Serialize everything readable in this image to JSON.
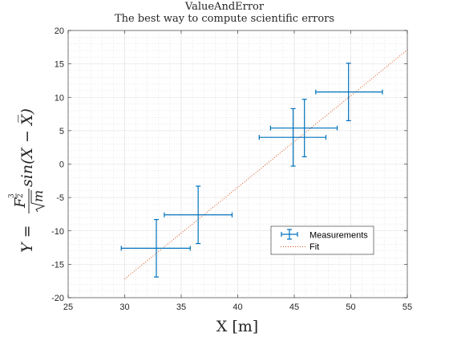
{
  "chart_data": {
    "type": "scatter",
    "title": "ValueAndError",
    "subtitle": "The best way to compute scientific errors",
    "xlabel": "X [m]",
    "ylabel_parts": {
      "lhs": "Y = ",
      "numerator_base": "F",
      "numerator_exponent_num": "3",
      "numerator_exponent_den": "2",
      "denominator_radicand": "m",
      "rhs": "sin(X − X̅)"
    },
    "xlim": [
      25,
      55
    ],
    "ylim": [
      -20,
      20
    ],
    "xticks": [
      "25",
      "30",
      "35",
      "40",
      "45",
      "50",
      "55"
    ],
    "yticks": [
      "-20",
      "-15",
      "-10",
      "-5",
      "0",
      "5",
      "10",
      "15",
      "20"
    ],
    "grid": true,
    "minor_grid": true,
    "legend_position": "bottom-right",
    "series": [
      {
        "name": "Measurements",
        "kind": "errorbar",
        "color": "#0072BD",
        "points": [
          {
            "x": 32.8,
            "y": -12.6,
            "xneg": 3.1,
            "xpos": 3.0,
            "yneg": 4.3,
            "ypos": 4.3
          },
          {
            "x": 36.5,
            "y": -7.6,
            "xneg": 3.0,
            "xpos": 3.0,
            "yneg": 4.3,
            "ypos": 4.3
          },
          {
            "x": 44.9,
            "y": 4.0,
            "xneg": 3.0,
            "xpos": 2.9,
            "yneg": 4.3,
            "ypos": 4.3
          },
          {
            "x": 45.9,
            "y": 5.4,
            "xneg": 3.0,
            "xpos": 2.9,
            "yneg": 4.3,
            "ypos": 4.3
          },
          {
            "x": 49.8,
            "y": 10.8,
            "xneg": 2.9,
            "xpos": 3.0,
            "yneg": 4.3,
            "ypos": 4.3
          }
        ]
      },
      {
        "name": "Fit",
        "kind": "line",
        "style": "dotted",
        "color": "#D95319",
        "x": [
          30,
          55
        ],
        "y": [
          -17.2,
          17.1
        ]
      }
    ]
  }
}
